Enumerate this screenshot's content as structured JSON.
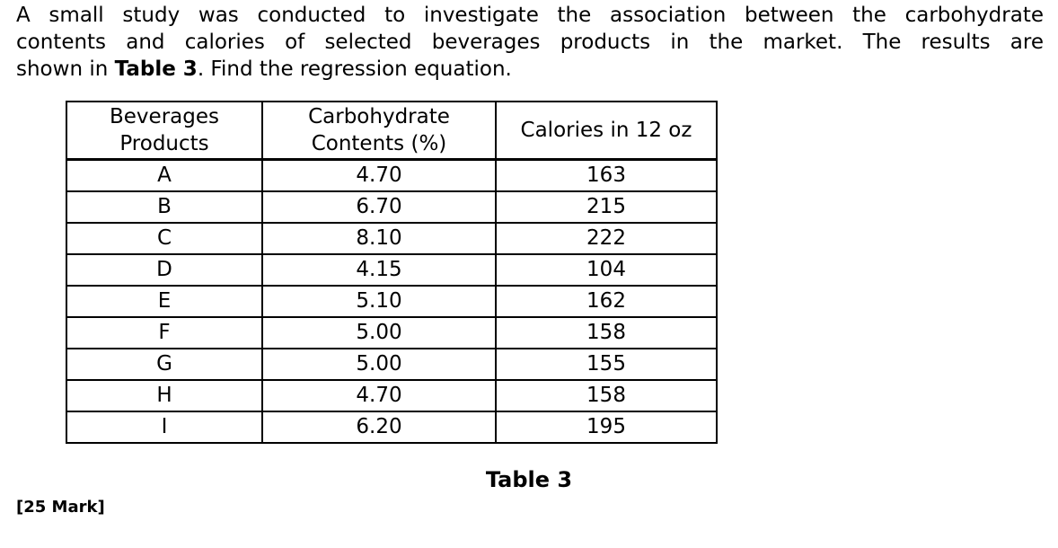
{
  "document": {
    "paragraph": {
      "line1": "A small study was conducted to investigate the association between the carbohydrate",
      "line2": "contents and calories of selected beverages products in the market. The results are",
      "line3_prefix": "shown in ",
      "line3_bold": "Table 3",
      "line3_suffix": ". Find the regression equation."
    },
    "table": {
      "headers": [
        "Beverages\nProducts",
        "Carbohydrate\nContents (%)",
        "Calories in 12 oz"
      ],
      "rows": [
        {
          "product": "A",
          "carbohydrate": "4.70",
          "calories": "163"
        },
        {
          "product": "B",
          "carbohydrate": "6.70",
          "calories": "215"
        },
        {
          "product": "C",
          "carbohydrate": "8.10",
          "calories": "222"
        },
        {
          "product": "D",
          "carbohydrate": "4.15",
          "calories": "104"
        },
        {
          "product": "E",
          "carbohydrate": "5.10",
          "calories": "162"
        },
        {
          "product": "F",
          "carbohydrate": "5.00",
          "calories": "158"
        },
        {
          "product": "G",
          "carbohydrate": "5.00",
          "calories": "155"
        },
        {
          "product": "H",
          "carbohydrate": "4.70",
          "calories": "158"
        },
        {
          "product": "I",
          "carbohydrate": "6.20",
          "calories": "195"
        }
      ],
      "caption": "Table 3"
    },
    "marks": "[25 Mark]"
  }
}
